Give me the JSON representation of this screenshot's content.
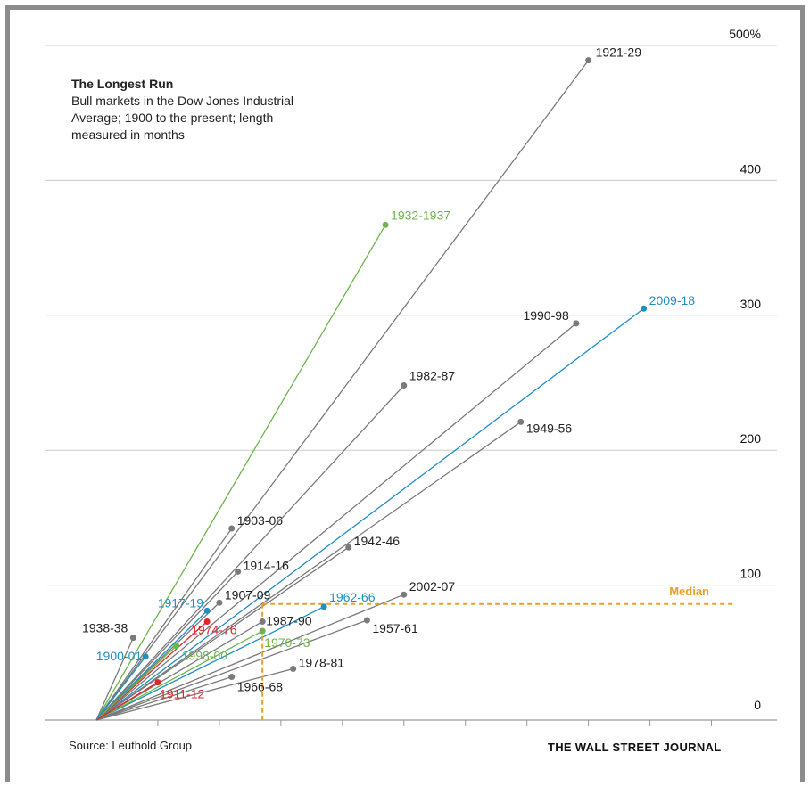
{
  "title": "The Longest Run",
  "subtitle": "Bull markets in the Dow Jones Industrial Average; 1900 to the present; length measured in months",
  "source": "Source:  Leuthold Group",
  "credit": "THE WALL STREET JOURNAL",
  "colors": {
    "gray": "#7a7a7a",
    "green": "#6cb54b",
    "blue": "#1f8fc4",
    "red": "#e0262b",
    "median": "#e8a02a",
    "grid": "#cccccc",
    "axis": "#999999"
  },
  "chart_data": {
    "type": "scatter",
    "x_unit": "months",
    "y_unit": "% gain",
    "xlim": [
      0,
      105
    ],
    "ylim": [
      0,
      500
    ],
    "y_ticks": [
      {
        "value": 0,
        "label": "0"
      },
      {
        "value": 100,
        "label": "100"
      },
      {
        "value": 200,
        "label": "200"
      },
      {
        "value": 300,
        "label": "300"
      },
      {
        "value": 400,
        "label": "400"
      },
      {
        "value": 500,
        "label": "500%"
      }
    ],
    "x_ticks": [
      10,
      20,
      30,
      40,
      50,
      60,
      70,
      80,
      90,
      100
    ],
    "median": {
      "label": "Median",
      "x": 27,
      "y": 86
    },
    "series": [
      {
        "label": "1921-29",
        "x": 80,
        "y": 489,
        "color": "gray"
      },
      {
        "label": "1932-1937",
        "x": 47,
        "y": 367,
        "color": "green"
      },
      {
        "label": "2009-18",
        "x": 89,
        "y": 305,
        "color": "blue"
      },
      {
        "label": "1990-98",
        "x": 78,
        "y": 294,
        "color": "gray"
      },
      {
        "label": "1982-87",
        "x": 50,
        "y": 248,
        "color": "gray"
      },
      {
        "label": "1949-56",
        "x": 69,
        "y": 221,
        "color": "gray"
      },
      {
        "label": "1903-06",
        "x": 22,
        "y": 142,
        "color": "gray"
      },
      {
        "label": "1942-46",
        "x": 41,
        "y": 128,
        "color": "gray"
      },
      {
        "label": "1914-16",
        "x": 23,
        "y": 110,
        "color": "gray"
      },
      {
        "label": "2002-07",
        "x": 50,
        "y": 93,
        "color": "gray"
      },
      {
        "label": "1907-09",
        "x": 20,
        "y": 87,
        "color": "gray"
      },
      {
        "label": "1962-66",
        "x": 37,
        "y": 84,
        "color": "blue"
      },
      {
        "label": "1917-19",
        "x": 18,
        "y": 81,
        "color": "blue"
      },
      {
        "label": "1987-90",
        "x": 27,
        "y": 73,
        "color": "gray"
      },
      {
        "label": "1957-61",
        "x": 44,
        "y": 74,
        "color": "gray"
      },
      {
        "label": "1974-76",
        "x": 18,
        "y": 73,
        "color": "red"
      },
      {
        "label": "1970-73",
        "x": 27,
        "y": 66,
        "color": "green"
      },
      {
        "label": "1938-38",
        "x": 6,
        "y": 61,
        "color": "gray"
      },
      {
        "label": "1998-00",
        "x": 13,
        "y": 55,
        "color": "green"
      },
      {
        "label": "1900-01",
        "x": 8,
        "y": 47,
        "color": "blue"
      },
      {
        "label": "1978-81",
        "x": 32,
        "y": 38,
        "color": "gray"
      },
      {
        "label": "1966-68",
        "x": 22,
        "y": 32,
        "color": "gray"
      },
      {
        "label": "1911-12",
        "x": 10,
        "y": 28,
        "color": "red"
      }
    ]
  }
}
